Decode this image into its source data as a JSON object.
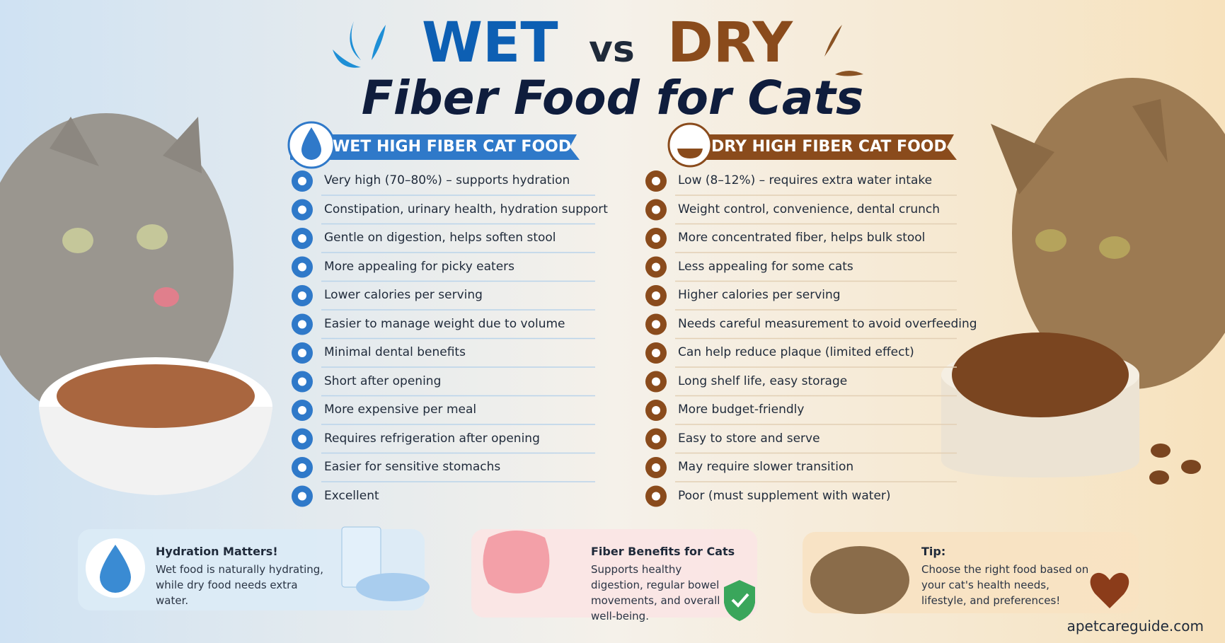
{
  "title": {
    "wet": "WET",
    "vs": "vs",
    "dry": "DRY",
    "subtitle": "Fiber Food for Cats"
  },
  "columns": [
    {
      "heading": "WET HIGH FIBER CAT FOOD",
      "items": [
        "Very high (70–80%) – supports hydration",
        "Constipation, urinary health, hydration support",
        "Gentle on digestion, helps soften stool",
        "More appealing for picky eaters",
        "Lower calories per serving",
        "Easier to manage weight due to volume",
        "Minimal dental benefits",
        "Short after opening",
        "More expensive per meal",
        "Requires refrigeration after opening",
        "Easier for sensitive stomachs",
        "Excellent"
      ]
    },
    {
      "heading": "DRY HIGH FIBER CAT FOOD",
      "items": [
        "Low (8–12%) – requires extra water intake",
        "Weight control, convenience, dental crunch",
        "More concentrated fiber, helps bulk stool",
        "Less appealing for some cats",
        "Higher calories per serving",
        "Needs careful measurement to avoid overfeeding",
        "Can help reduce plaque (limited effect)",
        "Long shelf life, easy storage",
        "More budget-friendly",
        "Easy to store and serve",
        "May require slower transition",
        "Poor (must supplement with water)"
      ]
    }
  ],
  "callouts": [
    {
      "title": "Hydration Matters!",
      "text": "Wet food is naturally hydrating, while dry food needs extra water."
    },
    {
      "title": "Fiber Benefits for Cats",
      "text": "Supports healthy digestion, regular bowel movements, and overall well-being."
    },
    {
      "title": "Tip:",
      "text": "Choose the right food based on your cat's health needs, lifestyle, and preferences!"
    }
  ],
  "footer": "apetcareguide.com"
}
